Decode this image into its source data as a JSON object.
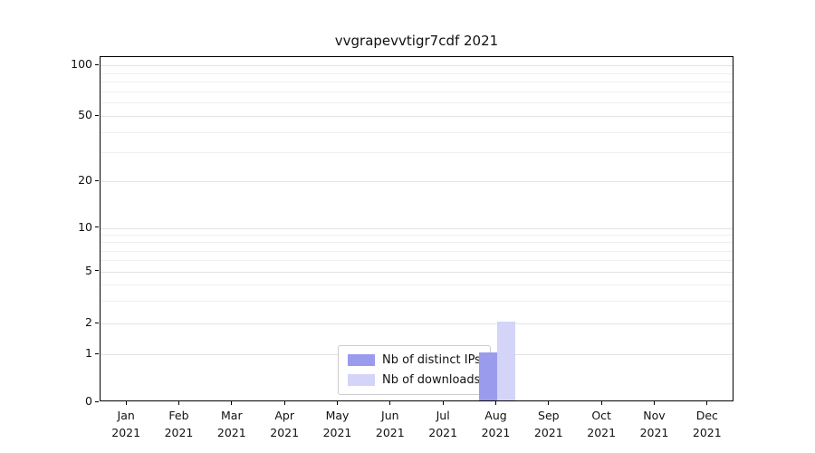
{
  "chart_data": {
    "type": "bar",
    "title": "vvgrapevvtigr7cdf 2021",
    "categories": [
      "Jan 2021",
      "Feb 2021",
      "Mar 2021",
      "Apr 2021",
      "May 2021",
      "Jun 2021",
      "Jul 2021",
      "Aug 2021",
      "Sep 2021",
      "Oct 2021",
      "Nov 2021",
      "Dec 2021"
    ],
    "series": [
      {
        "name": "Nb of distinct IPs",
        "color": "#9b9bee",
        "values": [
          0,
          0,
          0,
          0,
          0,
          0,
          0,
          1,
          0,
          0,
          0,
          0
        ]
      },
      {
        "name": "Nb of downloads",
        "color": "#d4d4f9",
        "values": [
          0,
          0,
          0,
          0,
          0,
          0,
          0,
          2,
          0,
          0,
          0,
          0
        ]
      }
    ],
    "yscale": "symlog",
    "yticks": [
      0,
      1,
      2,
      5,
      10,
      20,
      50,
      100
    ],
    "ylim": [
      0,
      100
    ],
    "grid": true,
    "legend_position": "lower center"
  }
}
